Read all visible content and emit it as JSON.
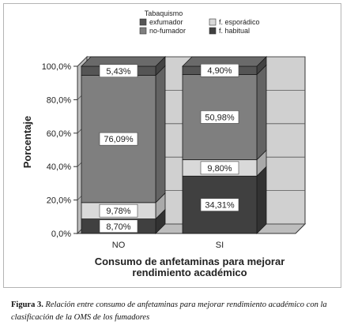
{
  "chart_data": {
    "type": "bar",
    "stacked": true,
    "three_d": true,
    "legend_title": "Tabaquismo",
    "legend_placement": "top-center",
    "categories": [
      "NO",
      "SI"
    ],
    "series": [
      {
        "name": "f. habitual",
        "values": [
          8.7,
          34.31
        ],
        "labels": [
          "8,70%",
          "34,31%"
        ],
        "color": "#404040"
      },
      {
        "name": "f. esporádico",
        "values": [
          9.78,
          9.8
        ],
        "labels": [
          "9,78%",
          "9,80%"
        ],
        "color": "#d9d9d9"
      },
      {
        "name": "no-fumador",
        "values": [
          76.09,
          50.98
        ],
        "labels": [
          "76,09%",
          "50,98%"
        ],
        "color": "#7f7f7f"
      },
      {
        "name": "exfumador",
        "values": [
          5.43,
          4.9
        ],
        "labels": [
          "5,43%",
          "4,90%"
        ],
        "color": "#555555"
      }
    ],
    "legend_order": [
      "exfumador",
      "f. esporádico",
      "no-fumador",
      "f. habitual"
    ],
    "ylabel": "Porcentaje",
    "xlabel": "Consumo de anfetaminas para mejorar rendimiento académico",
    "ylim": [
      0,
      100
    ],
    "yticks": [
      0,
      20,
      40,
      60,
      80,
      100
    ],
    "ytick_labels": [
      "0,0%",
      "20,0%",
      "40,0%",
      "60,0%",
      "80,0%",
      "100,0%"
    ],
    "grid": true
  },
  "caption": {
    "label": "Figura 3.",
    "text": "Relación entre consumo de anfetaminas para mejorar rendimiento académico con la clasificación de la OMS de los fumadores"
  }
}
